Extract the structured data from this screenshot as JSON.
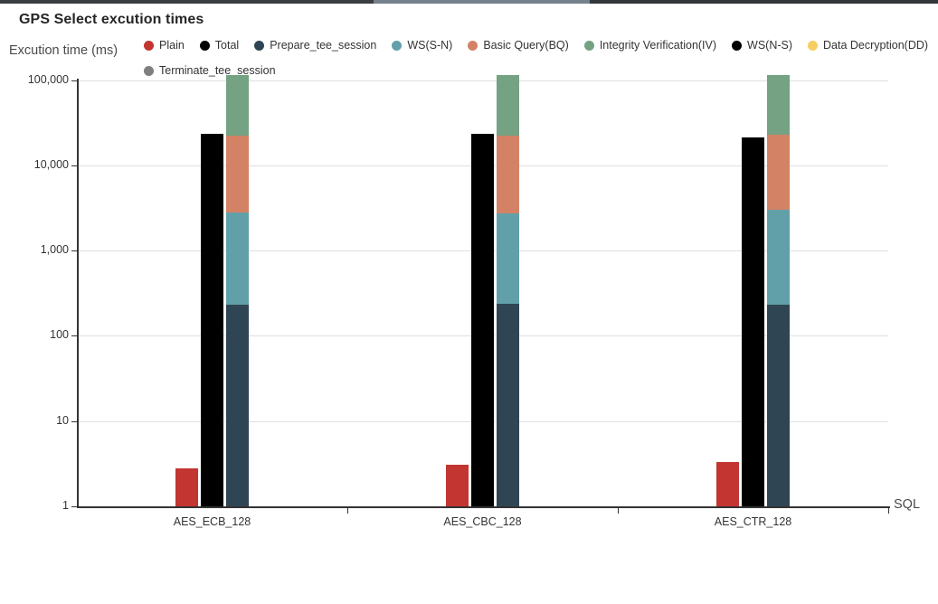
{
  "window": {
    "strip_segments": [
      {
        "color": "#3a3e43",
        "from": 0,
        "to": 413
      },
      {
        "color": "#75818d",
        "from": 413,
        "to": 652
      },
      {
        "color": "#33373b",
        "from": 652,
        "to": 1037
      }
    ]
  },
  "chart_data": {
    "type": "bar",
    "y_scale": "log",
    "title": "GPS Select excution times",
    "ylabel": "Excution time  (ms)",
    "xlabel": "SQL",
    "ylim": [
      1,
      100000
    ],
    "ytick_labels": [
      "1",
      "10",
      "100",
      "1,000",
      "10,000",
      "100,000"
    ],
    "grid": true,
    "legend_position": "top",
    "categories": [
      "AES_ECB_128",
      "AES_CBC_128",
      "AES_CTR_128"
    ],
    "legend": [
      {
        "label": "Plain",
        "color": "#c23531",
        "row": 1
      },
      {
        "label": "Total",
        "color": "#000000",
        "row": 1
      },
      {
        "label": "Prepare_tee_session",
        "color": "#2f4554",
        "row": 1
      },
      {
        "label": "WS(S-N)",
        "color": "#61a0a8",
        "row": 1
      },
      {
        "label": "Basic Query(BQ)",
        "color": "#d48265",
        "row": 1
      },
      {
        "label": "Integrity Verification(IV)",
        "color": "#74a283",
        "row": 1
      },
      {
        "label": "WS(N-S)",
        "color": "#000000",
        "row": 1
      },
      {
        "label": "Data Decryption(DD)",
        "color": "#f6cd60",
        "row": 1
      },
      {
        "label": "Terminate_tee_session",
        "color": "#7f7f7f",
        "row": 2
      }
    ],
    "series": [
      {
        "name": "Plain",
        "color": "#c23531",
        "role": "bar",
        "values": [
          2.8,
          3.1,
          3.3
        ]
      },
      {
        "name": "Total",
        "color": "#000000",
        "role": "bar",
        "values": [
          23500,
          23500,
          21000
        ]
      },
      {
        "name": "Prepare_tee_session",
        "color": "#2f4554",
        "role": "stack",
        "stack_top_values": [
          230,
          235,
          230
        ]
      },
      {
        "name": "WS(S-N)",
        "color": "#61a0a8",
        "role": "stack",
        "stack_top_values": [
          2800,
          2700,
          3000
        ]
      },
      {
        "name": "Basic Query(BQ)",
        "color": "#d48265",
        "role": "stack",
        "stack_top_values": [
          22500,
          22400,
          22800
        ]
      },
      {
        "name": "Integrity Verification(IV)",
        "color": "#74a283",
        "role": "stack",
        "stack_top_values": [
          null,
          null,
          null
        ],
        "clipped_above_ymax": true
      },
      {
        "name": "WS(N-S)",
        "color": "#000000",
        "role": "legend-only",
        "values": null
      },
      {
        "name": "Data Decryption(DD)",
        "color": "#f6cd60",
        "role": "legend-only",
        "values": null
      },
      {
        "name": "Terminate_tee_session",
        "color": "#7f7f7f",
        "role": "legend-only",
        "values": null
      }
    ]
  }
}
